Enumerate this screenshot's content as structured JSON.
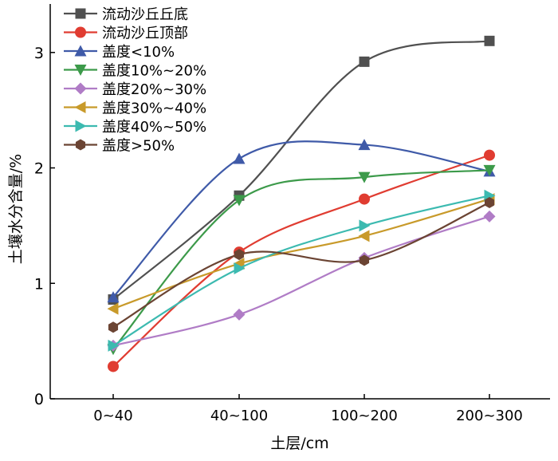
{
  "chart_data": {
    "type": "line",
    "title": "",
    "xlabel": "土层/cm",
    "ylabel": "土壤水分含量/%",
    "categories": [
      "0~40",
      "40~100",
      "100~200",
      "200~300"
    ],
    "ylim": [
      0,
      3.42
    ],
    "yticks": [
      0,
      1,
      2,
      3
    ],
    "grid": false,
    "legend_position": "top-left",
    "series": [
      {
        "name": "流动沙丘丘底",
        "color": "#505050",
        "marker": "square",
        "values": [
          0.86,
          1.76,
          2.92,
          3.1
        ]
      },
      {
        "name": "流动沙丘顶部",
        "color": "#e03c31",
        "marker": "circle",
        "values": [
          0.28,
          1.27,
          1.73,
          2.11
        ]
      },
      {
        "name": "盖度<10%",
        "color": "#3f5aa8",
        "marker": "triangle-up",
        "values": [
          0.88,
          2.08,
          2.2,
          1.97
        ]
      },
      {
        "name": "盖度10%~20%",
        "color": "#3c9a4a",
        "marker": "triangle-down",
        "values": [
          0.43,
          1.72,
          1.92,
          1.98
        ]
      },
      {
        "name": "盖度20%~30%",
        "color": "#b07cc6",
        "marker": "diamond",
        "values": [
          0.46,
          0.73,
          1.22,
          1.58
        ]
      },
      {
        "name": "盖度30%~40%",
        "color": "#c89a2a",
        "marker": "triangle-left",
        "values": [
          0.78,
          1.17,
          1.41,
          1.73
        ]
      },
      {
        "name": "盖度40%~50%",
        "color": "#3cbab0",
        "marker": "triangle-right",
        "values": [
          0.46,
          1.13,
          1.5,
          1.76
        ]
      },
      {
        "name": "盖度>50%",
        "color": "#6b4433",
        "marker": "hexagon",
        "values": [
          0.62,
          1.25,
          1.2,
          1.7
        ]
      }
    ]
  }
}
